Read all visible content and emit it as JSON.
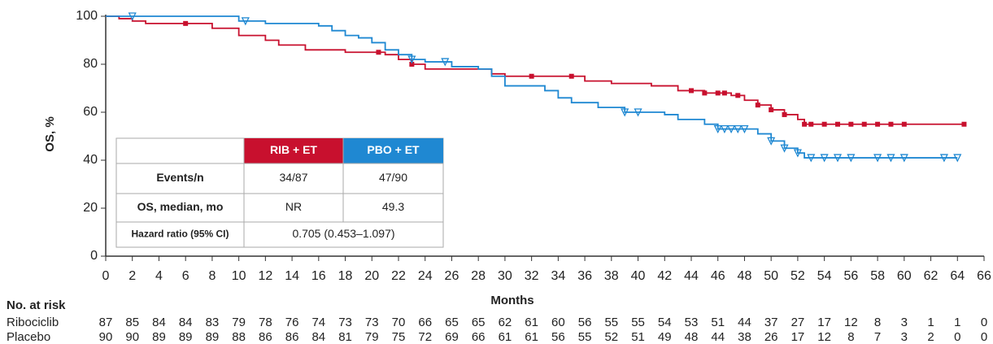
{
  "chart_data": {
    "type": "step",
    "ylabel": "OS, %",
    "xlabel": "Months",
    "xlim": [
      0,
      66
    ],
    "ylim": [
      0,
      100
    ],
    "xticks": [
      0,
      2,
      4,
      6,
      8,
      10,
      12,
      14,
      16,
      18,
      20,
      22,
      24,
      26,
      28,
      30,
      32,
      34,
      36,
      38,
      40,
      42,
      44,
      46,
      48,
      50,
      52,
      54,
      56,
      58,
      60,
      62,
      64,
      66
    ],
    "yticks": [
      0,
      20,
      40,
      60,
      80,
      100
    ],
    "series": [
      {
        "name": "Ribociclib",
        "color": "#c8102e",
        "marker": "square",
        "x": [
          0,
          1,
          2,
          3,
          6,
          8,
          10,
          12,
          13,
          15,
          18,
          21,
          22,
          23,
          24,
          28,
          29,
          30,
          35,
          36,
          38,
          41,
          43,
          45,
          47,
          48,
          49,
          50,
          51,
          52,
          52.5,
          64.5
        ],
        "values": [
          100,
          99,
          98,
          97,
          97,
          95,
          92,
          90,
          88,
          86,
          85,
          84,
          82,
          80,
          78,
          78,
          76,
          75,
          75,
          73,
          72,
          71,
          69,
          68,
          67,
          65,
          63,
          61,
          59,
          57,
          55,
          55
        ],
        "censored_x": [
          6,
          20.5,
          23,
          32,
          35,
          44,
          45,
          46,
          46.5,
          47.5,
          49,
          50,
          51,
          52.5,
          53,
          54,
          55,
          56,
          57,
          58,
          59,
          60,
          64.5
        ],
        "censored_y": [
          97,
          85,
          80,
          75,
          75,
          69,
          68,
          68,
          68,
          67,
          63,
          61,
          59,
          55,
          55,
          55,
          55,
          55,
          55,
          55,
          55,
          55,
          55
        ]
      },
      {
        "name": "Placebo",
        "color": "#1f88d2",
        "marker": "triangle",
        "x": [
          0,
          10,
          12,
          16,
          17,
          18,
          19,
          20,
          21,
          22,
          23,
          24,
          26,
          28,
          29,
          30,
          33,
          34,
          35,
          37,
          39,
          42,
          43,
          45,
          46,
          49,
          50,
          51,
          52,
          52.5,
          64
        ],
        "values": [
          100,
          98,
          97,
          96,
          94,
          92,
          91,
          89,
          86,
          84,
          82,
          81,
          79,
          78,
          75,
          71,
          69,
          66,
          64,
          62,
          60,
          59,
          57,
          55,
          53,
          51,
          48,
          45,
          43,
          41,
          41
        ],
        "censored_x": [
          2,
          10.5,
          23,
          25.5,
          39,
          40,
          46,
          46.5,
          47,
          47.5,
          48,
          50,
          51,
          52,
          53,
          54,
          55,
          56,
          58,
          59,
          60,
          63,
          64
        ],
        "censored_y": [
          100,
          98,
          82,
          81,
          60,
          60,
          53,
          53,
          53,
          53,
          53,
          48,
          45,
          43,
          41,
          41,
          41,
          41,
          41,
          41,
          41,
          41,
          41
        ]
      }
    ],
    "inset_table": {
      "columns": [
        "RIB + ET",
        "PBO + ET"
      ],
      "rows": [
        [
          "Events/n",
          "34/87",
          "47/90"
        ],
        [
          "OS, median, mo",
          "NR",
          "49.3"
        ],
        [
          "Hazard ratio (95% CI)",
          "0.705 (0.453–1.097)"
        ]
      ]
    },
    "risk_table": {
      "title": "No. at risk",
      "rows": [
        {
          "name": "Ribociclib",
          "values": [
            87,
            85,
            84,
            84,
            83,
            79,
            78,
            76,
            74,
            73,
            73,
            70,
            66,
            65,
            65,
            62,
            61,
            60,
            56,
            55,
            55,
            54,
            53,
            51,
            44,
            37,
            27,
            17,
            12,
            8,
            3,
            1,
            1,
            0
          ]
        },
        {
          "name": "Placebo",
          "values": [
            90,
            90,
            89,
            89,
            89,
            88,
            86,
            86,
            84,
            81,
            79,
            75,
            72,
            69,
            66,
            61,
            61,
            56,
            55,
            52,
            51,
            49,
            48,
            44,
            38,
            26,
            17,
            12,
            8,
            7,
            3,
            2,
            0,
            0
          ]
        }
      ]
    }
  }
}
